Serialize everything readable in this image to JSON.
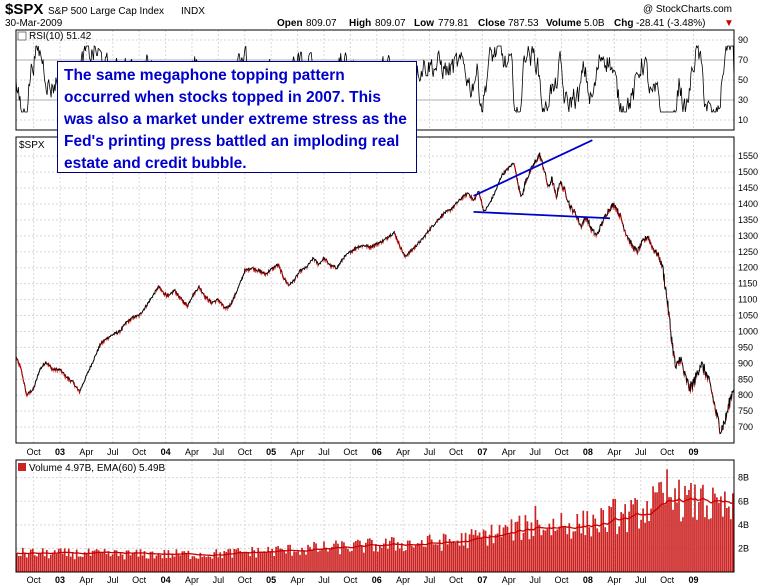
{
  "header": {
    "symbol": "$SPX",
    "name": "S&P 500 Large Cap Index",
    "exchange": "INDX",
    "date": "30-Mar-2009",
    "watermark": "@ StockCharts.com",
    "open_label": "Open",
    "open": "809.07",
    "high_label": "High",
    "high": "809.07",
    "low_label": "Low",
    "low": "779.81",
    "close_label": "Close",
    "close": "787.53",
    "volume_label": "Volume",
    "volume": "5.0B",
    "chg_label": "Chg",
    "chg": "-28.41 (-3.48%)",
    "chg_marker": "▼"
  },
  "annotation": {
    "text": "The same megaphone topping pattern occurred when stocks topped in 2007. This was also a market under extreme stress as the Fed's printing press battled an imploding real estate and credit bubble."
  },
  "colors": {
    "price_line": "#000000",
    "price_down": "#cc0000",
    "trendline": "#0000cc",
    "rsi_line": "#000000",
    "volume_bar": "#cc2222",
    "ema_line": "#cc0000",
    "text_blue": "#0000cc"
  },
  "chart_data": [
    {
      "type": "line",
      "panel": "rsi",
      "label": "RSI(10) 51.42",
      "ylim": [
        0,
        100
      ],
      "yticks": [
        10,
        30,
        50,
        70,
        90
      ],
      "reference_lines": [
        30,
        70
      ],
      "last_value": 51.42
    },
    {
      "type": "line",
      "panel": "price",
      "label": "$SPX",
      "ylim": [
        650,
        1610
      ],
      "yticks": [
        700,
        750,
        800,
        850,
        900,
        950,
        1000,
        1050,
        1100,
        1150,
        1200,
        1250,
        1300,
        1350,
        1400,
        1450,
        1500,
        1550
      ],
      "x_tick_labels": [
        "Oct",
        "03",
        "Apr",
        "Jul",
        "Oct",
        "04",
        "Apr",
        "Jul",
        "Oct",
        "05",
        "Apr",
        "Jul",
        "Oct",
        "06",
        "Apr",
        "Jul",
        "Oct",
        "07",
        "Apr",
        "Jul",
        "Oct",
        "08",
        "Apr",
        "Jul",
        "Oct",
        "09"
      ],
      "x_tick_months": [
        0,
        3,
        6,
        9,
        12,
        15,
        18,
        21,
        24,
        27,
        30,
        33,
        36,
        39,
        42,
        45,
        48,
        51,
        54,
        57,
        60,
        63,
        66,
        69,
        72,
        75
      ],
      "series": [
        {
          "key": "close",
          "points": [
            [
              -2,
              920
            ],
            [
              -1.4,
              880
            ],
            [
              -0.8,
              800
            ],
            [
              0,
              820
            ],
            [
              0.7,
              880
            ],
            [
              1.4,
              905
            ],
            [
              2.2,
              880
            ],
            [
              3,
              880
            ],
            [
              3.8,
              855
            ],
            [
              4.5,
              840
            ],
            [
              5.2,
              810
            ],
            [
              6,
              860
            ],
            [
              6.8,
              910
            ],
            [
              7.6,
              960
            ],
            [
              8.4,
              980
            ],
            [
              9,
              990
            ],
            [
              9.8,
              1000
            ],
            [
              10.6,
              1030
            ],
            [
              11.4,
              1045
            ],
            [
              12,
              1050
            ],
            [
              12.8,
              1080
            ],
            [
              13.5,
              1110
            ],
            [
              14.2,
              1140
            ],
            [
              14.8,
              1120
            ],
            [
              15.4,
              1110
            ],
            [
              16,
              1130
            ],
            [
              16.8,
              1100
            ],
            [
              17.5,
              1080
            ],
            [
              18,
              1110
            ],
            [
              18.8,
              1140
            ],
            [
              19.5,
              1110
            ],
            [
              20.2,
              1090
            ],
            [
              21,
              1100
            ],
            [
              21.8,
              1070
            ],
            [
              22.4,
              1085
            ],
            [
              23,
              1120
            ],
            [
              23.6,
              1160
            ],
            [
              24,
              1190
            ],
            [
              24.8,
              1200
            ],
            [
              25.6,
              1190
            ],
            [
              26.4,
              1180
            ],
            [
              27,
              1195
            ],
            [
              27.8,
              1210
            ],
            [
              28.4,
              1170
            ],
            [
              29,
              1145
            ],
            [
              29.6,
              1160
            ],
            [
              30.3,
              1190
            ],
            [
              31,
              1200
            ],
            [
              31.8,
              1230
            ],
            [
              32.4,
              1210
            ],
            [
              33,
              1230
            ],
            [
              33.8,
              1205
            ],
            [
              34.5,
              1200
            ],
            [
              35.2,
              1230
            ],
            [
              36,
              1250
            ],
            [
              36.8,
              1265
            ],
            [
              37.5,
              1270
            ],
            [
              38.2,
              1265
            ],
            [
              39,
              1275
            ],
            [
              39.8,
              1285
            ],
            [
              40.4,
              1300
            ],
            [
              41,
              1310
            ],
            [
              41.6,
              1270
            ],
            [
              42.2,
              1235
            ],
            [
              42.8,
              1250
            ],
            [
              43.5,
              1270
            ],
            [
              44.2,
              1290
            ],
            [
              45,
              1320
            ],
            [
              45.8,
              1345
            ],
            [
              46.6,
              1370
            ],
            [
              47.3,
              1380
            ],
            [
              48,
              1400
            ],
            [
              48.7,
              1420
            ],
            [
              49.4,
              1435
            ],
            [
              50,
              1410
            ],
            [
              50.6,
              1440
            ],
            [
              51.2,
              1375
            ],
            [
              51.8,
              1400
            ],
            [
              52.5,
              1440
            ],
            [
              53.2,
              1490
            ],
            [
              53.9,
              1510
            ],
            [
              54.6,
              1530
            ],
            [
              55,
              1470
            ],
            [
              55.5,
              1420
            ],
            [
              55.9,
              1470
            ],
            [
              56.4,
              1500
            ],
            [
              57,
              1530
            ],
            [
              57.5,
              1555
            ],
            [
              58,
              1510
            ],
            [
              58.5,
              1450
            ],
            [
              58.9,
              1480
            ],
            [
              59.4,
              1420
            ],
            [
              59.8,
              1470
            ],
            [
              60.4,
              1440
            ],
            [
              61,
              1390
            ],
            [
              61.6,
              1370
            ],
            [
              62.2,
              1330
            ],
            [
              62.8,
              1360
            ],
            [
              63.4,
              1320
            ],
            [
              64,
              1300
            ],
            [
              64.6,
              1340
            ],
            [
              65.3,
              1380
            ],
            [
              66,
              1400
            ],
            [
              66.7,
              1360
            ],
            [
              67.3,
              1310
            ],
            [
              68,
              1270
            ],
            [
              68.6,
              1250
            ],
            [
              69.2,
              1280
            ],
            [
              69.8,
              1300
            ],
            [
              70.4,
              1260
            ],
            [
              71,
              1240
            ],
            [
              71.5,
              1200
            ],
            [
              72,
              1100
            ],
            [
              72.5,
              980
            ],
            [
              73,
              880
            ],
            [
              73.5,
              920
            ],
            [
              74,
              860
            ],
            [
              74.6,
              820
            ],
            [
              75.2,
              850
            ],
            [
              75.8,
              900
            ],
            [
              76.4,
              870
            ],
            [
              77,
              820
            ],
            [
              77.6,
              740
            ],
            [
              78.1,
              690
            ],
            [
              78.6,
              720
            ],
            [
              79.2,
              790
            ],
            [
              79.6,
              830
            ]
          ]
        }
      ],
      "trendlines": [
        {
          "from": [
            50,
            1425
          ],
          "to": [
            63.5,
            1600
          ]
        },
        {
          "from": [
            50,
            1375
          ],
          "to": [
            65.5,
            1355
          ]
        }
      ]
    },
    {
      "type": "bar",
      "panel": "volume",
      "label": "Volume 4.97B, EMA(60) 5.49B",
      "ylim": [
        0,
        9.5
      ],
      "yticks": [
        2,
        4,
        6,
        8
      ],
      "ytick_labels": [
        "2B",
        "4B",
        "6B",
        "8B"
      ],
      "volume_regimes": [
        [
          -2,
          1.6
        ],
        [
          10,
          1.5
        ],
        [
          20,
          1.5
        ],
        [
          30,
          1.9
        ],
        [
          40,
          2.3
        ],
        [
          48,
          2.6
        ],
        [
          56,
          3.8
        ],
        [
          62,
          4.0
        ],
        [
          68,
          4.8
        ],
        [
          72,
          6.3
        ],
        [
          76,
          5.7
        ],
        [
          79.6,
          5.2
        ]
      ],
      "volume_spikes": [
        [
          57,
          5.6
        ],
        [
          60,
          5.0
        ],
        [
          66,
          6.2
        ],
        [
          72,
          8.7
        ],
        [
          73,
          7.1
        ],
        [
          76,
          7.4
        ]
      ],
      "ema_ylim_note": "EMA(60) 5.49B"
    }
  ]
}
